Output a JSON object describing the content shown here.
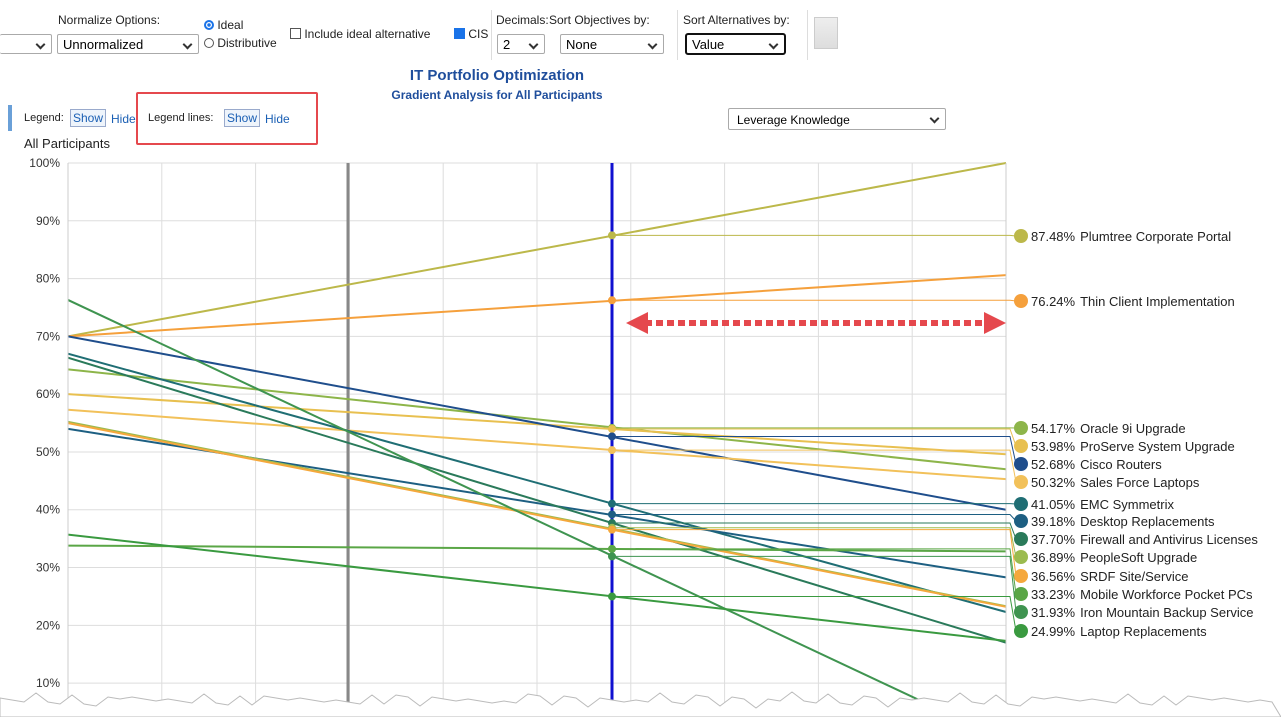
{
  "toolbar": {
    "normalize_label": "Normalize Options:",
    "normalize_value": "Unnormalized",
    "radio_ideal": "Ideal",
    "radio_distributive": "Distributive",
    "include_ideal": "Include ideal alternative",
    "cis": "CIS",
    "decimals_label": "Decimals:",
    "decimals_value": "2",
    "sort_objectives_label": "Sort Objectives by:",
    "sort_objectives_value": "None",
    "sort_alternatives_label": "Sort Alternatives by:",
    "sort_alternatives_value": "Value"
  },
  "controls": {
    "legend_label": "Legend:",
    "legend_show": "Show",
    "legend_hide": "Hide",
    "legend_lines_label": "Legend lines:",
    "legend_lines_show": "Show",
    "legend_lines_hide": "Hide",
    "objective": "Leverage Knowledge",
    "participants": "All Participants"
  },
  "chart_data": {
    "type": "gradient",
    "title": "IT Portfolio Optimization",
    "subtitle": "Gradient Analysis for All Participants",
    "ylim": [
      5,
      100
    ],
    "yticks": [
      {
        "value": 10,
        "label": "10%"
      },
      {
        "value": 20,
        "label": "20%"
      },
      {
        "value": 30,
        "label": "30%"
      },
      {
        "value": 40,
        "label": "40%"
      },
      {
        "value": 50,
        "label": "50%"
      },
      {
        "value": 60,
        "label": "60%"
      },
      {
        "value": 70,
        "label": "70%"
      },
      {
        "value": 80,
        "label": "80%"
      },
      {
        "value": 90,
        "label": "90%"
      },
      {
        "value": 100,
        "label": "100%"
      }
    ],
    "grid": true,
    "series": [
      {
        "name": "Plumtree Corporate Portal",
        "color": "#bcb84a",
        "values": [
          70,
          100
        ],
        "current": 87.48,
        "current_label": "87.48%"
      },
      {
        "name": "Thin Client Implementation",
        "color": "#f5a03c",
        "values": [
          70,
          80.6
        ],
        "current": 76.24,
        "current_label": "76.24%"
      },
      {
        "name": "Oracle 9i Upgrade",
        "color": "#8db54a",
        "values": [
          64.3,
          47
        ],
        "current": 54.17,
        "current_label": "54.17%"
      },
      {
        "name": "ProServe System Upgrade",
        "color": "#e8c050",
        "values": [
          60,
          49.6
        ],
        "current": 53.98,
        "current_label": "53.98%"
      },
      {
        "name": "Cisco Routers",
        "color": "#1f4e8c",
        "values": [
          70,
          40
        ],
        "current": 52.68,
        "current_label": "52.68%"
      },
      {
        "name": "Sales Force Laptops",
        "color": "#f2c15a",
        "values": [
          57.3,
          45.3
        ],
        "current": 50.32,
        "current_label": "50.32%"
      },
      {
        "name": "EMC Symmetrix",
        "color": "#1f6e74",
        "values": [
          67,
          22.3
        ],
        "current": 41.05,
        "current_label": "41.05%"
      },
      {
        "name": "Desktop Replacements",
        "color": "#1d5f82",
        "values": [
          54,
          28.3
        ],
        "current": 39.18,
        "current_label": "39.18%"
      },
      {
        "name": "Firewall and Antivirus Licenses",
        "color": "#2a7a5a",
        "values": [
          66.3,
          17
        ],
        "current": 37.7,
        "current_label": "37.70%"
      },
      {
        "name": "PeopleSoft Upgrade",
        "color": "#9bbb4f",
        "values": [
          55.2,
          23.3
        ],
        "current": 36.89,
        "current_label": "36.89%"
      },
      {
        "name": "SRDF Site/Service",
        "color": "#f5a83c",
        "values": [
          55,
          23.2
        ],
        "current": 36.56,
        "current_label": "36.56%"
      },
      {
        "name": "Mobile Workforce Pocket PCs",
        "color": "#5aa646",
        "values": [
          33.8,
          32.8
        ],
        "current": 33.23,
        "current_label": "33.23%"
      },
      {
        "name": "Iron Mountain Backup Service",
        "color": "#3f9450",
        "values": [
          76.3,
          0
        ],
        "current": 31.93,
        "current_label": "31.93%"
      },
      {
        "name": "Laptop Replacements",
        "color": "#3a9a40",
        "values": [
          35.7,
          17.3
        ],
        "current": 24.99,
        "current_label": "24.99%"
      }
    ]
  }
}
